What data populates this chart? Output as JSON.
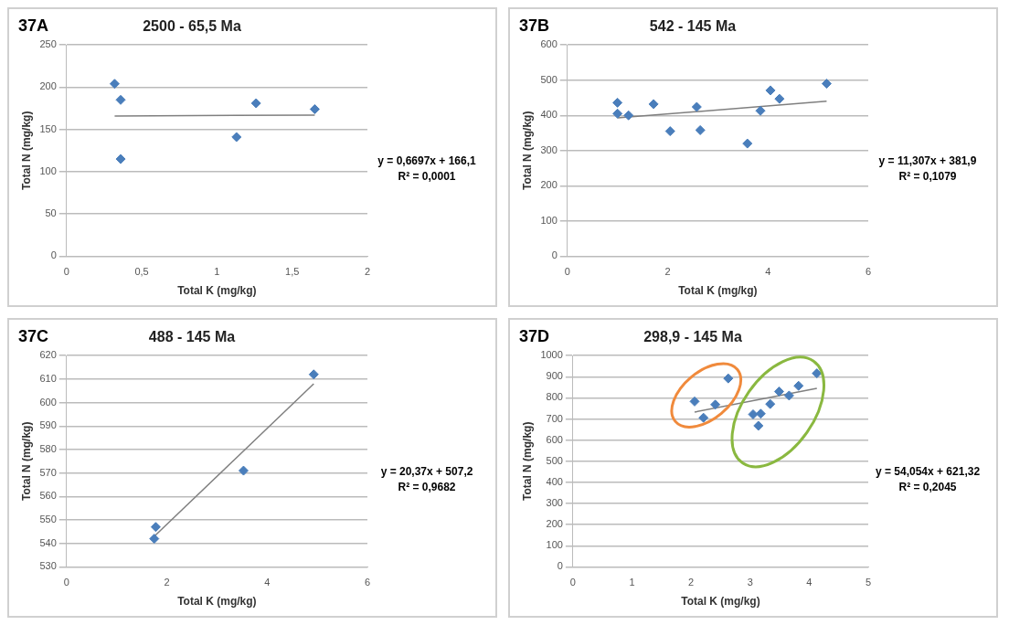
{
  "chart_data": [
    {
      "type": "scatter",
      "title": "2500 - 65,5 Ma",
      "xlabel": "Total K (mg/kg)",
      "ylabel": "Total N (mg/kg)",
      "grid": "y",
      "xlim": [
        0,
        2
      ],
      "xticks": [
        0,
        {
          "value": 0.5,
          "label": "0,5"
        },
        1,
        {
          "value": 1.5,
          "label": "1,5"
        },
        2
      ],
      "ylim": [
        0,
        250
      ],
      "yticks": [
        0,
        50,
        100,
        150,
        200,
        250
      ],
      "annotations": [
        "37A",
        "y = 0,6697x + 166,1",
        "R² = 0,0001"
      ],
      "series": [
        {
          "marker": "diamond",
          "color": "#4a7ebb",
          "x": [
            0.32,
            0.36,
            0.36,
            1.13,
            1.26,
            1.65
          ],
          "values": [
            204,
            185,
            115,
            141,
            181,
            174
          ]
        },
        {
          "type": "line",
          "marker": "none",
          "color": "#7f7f7f",
          "x": [
            0.32,
            1.65
          ],
          "values": [
            166,
            167
          ]
        }
      ]
    },
    {
      "type": "scatter",
      "title": "542 - 145 Ma",
      "xlabel": "Total K (mg/kg)",
      "ylabel": "Total N (mg/kg)",
      "grid": "y",
      "xlim": [
        0,
        6
      ],
      "xticks": [
        0,
        2,
        4,
        6
      ],
      "ylim": [
        0,
        600
      ],
      "yticks": [
        0,
        100,
        200,
        300,
        400,
        500,
        600
      ],
      "annotations": [
        "37B",
        "y = 11,307x + 381,9",
        "R² = 0,1079"
      ],
      "series": [
        {
          "marker": "diamond",
          "color": "#4a7ebb",
          "x": [
            1.0,
            1.0,
            1.22,
            1.72,
            2.05,
            2.58,
            2.65,
            3.59,
            3.85,
            4.05,
            4.23,
            5.17
          ],
          "values": [
            436,
            405,
            400,
            432,
            355,
            424,
            358,
            320,
            413,
            471,
            447,
            490
          ]
        },
        {
          "type": "line",
          "marker": "none",
          "color": "#7f7f7f",
          "x": [
            1.0,
            5.17
          ],
          "values": [
            393,
            440
          ]
        }
      ]
    },
    {
      "type": "scatter",
      "title": "488 - 145 Ma",
      "xlabel": "Total K (mg/kg)",
      "ylabel": "Total N (mg/kg)",
      "grid": "y",
      "xlim": [
        0,
        6
      ],
      "xticks": [
        0,
        2,
        4,
        6
      ],
      "ylim": [
        530,
        620
      ],
      "yticks": [
        530,
        540,
        550,
        560,
        570,
        580,
        590,
        600,
        610,
        620
      ],
      "annotations": [
        "37C",
        "y = 20,37x + 507,2",
        "R² = 0,9682"
      ],
      "series": [
        {
          "marker": "diamond",
          "color": "#4a7ebb",
          "x": [
            1.75,
            1.78,
            3.53,
            4.93
          ],
          "values": [
            542,
            547,
            571,
            612
          ]
        },
        {
          "type": "line",
          "marker": "none",
          "color": "#7f7f7f",
          "x": [
            1.75,
            4.93
          ],
          "values": [
            543,
            608
          ]
        }
      ]
    },
    {
      "type": "scatter",
      "title": "298,9 - 145 Ma",
      "xlabel": "Total K (mg/kg)",
      "ylabel": "Total N (mg/kg)",
      "grid": "y",
      "xlim": [
        0,
        5
      ],
      "xticks": [
        0,
        1,
        2,
        3,
        4,
        5
      ],
      "ylim": [
        0,
        1000
      ],
      "yticks": [
        0,
        100,
        200,
        300,
        400,
        500,
        600,
        700,
        800,
        900,
        1000
      ],
      "annotations": [
        "37D",
        "y = 54,054x + 621,32",
        "R² = 0,2045"
      ],
      "series": [
        {
          "marker": "diamond",
          "color": "#4a7ebb",
          "x": [
            2.06,
            2.21,
            2.41,
            2.63,
            3.05,
            3.14,
            3.18,
            3.34,
            3.49,
            3.66,
            3.82,
            4.13
          ],
          "values": [
            783,
            706,
            768,
            892,
            722,
            668,
            725,
            771,
            830,
            811,
            857,
            916
          ]
        },
        {
          "type": "line",
          "marker": "none",
          "color": "#7f7f7f",
          "x": [
            2.06,
            4.13
          ],
          "values": [
            733,
            845
          ]
        }
      ]
    }
  ]
}
